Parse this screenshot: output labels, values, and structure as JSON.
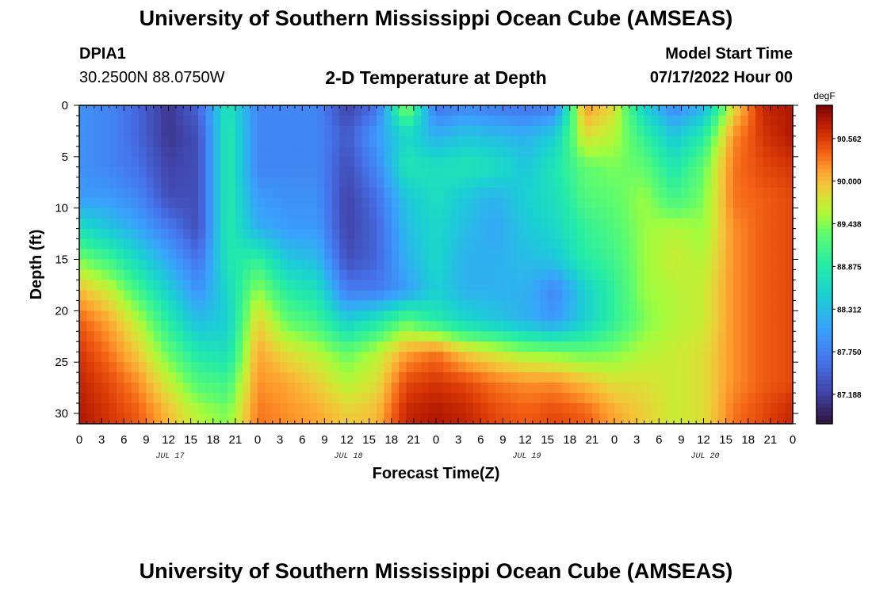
{
  "title": "University of Southern Mississippi Ocean Cube (AMSEAS)",
  "footer_title": "University of Southern Mississippi Ocean Cube (AMSEAS)",
  "station": {
    "id": "DPIA1",
    "coords": "30.2500N  88.0750W"
  },
  "plot_title": "2-D Temperature at Depth",
  "model_start": {
    "label": "Model Start Time",
    "value": "07/17/2022 Hour 00"
  },
  "colors": {
    "low": "#30123b",
    "mid": "#1ae4b6",
    "high": "#7a0403"
  },
  "chart_data": {
    "type": "heatmap",
    "title": "2-D Temperature at Depth",
    "xlabel": "Forecast Time(Z)",
    "ylabel": "Depth (ft)",
    "x_tick_labels": [
      "0",
      "3",
      "6",
      "9",
      "12",
      "15",
      "18",
      "21",
      "0",
      "3",
      "6",
      "9",
      "12",
      "15",
      "18",
      "21",
      "0",
      "3",
      "6",
      "9",
      "12",
      "15",
      "18",
      "21",
      "0",
      "3",
      "6",
      "9",
      "12",
      "15",
      "18",
      "21",
      "0"
    ],
    "date_labels": [
      "JUL 17",
      "JUL 18",
      "JUL 19",
      "JUL 20"
    ],
    "date_label_hours": [
      12,
      36,
      60,
      84
    ],
    "x_range_hours": [
      0,
      96
    ],
    "y_tick_labels": [
      "0",
      "5",
      "10",
      "15",
      "20",
      "25",
      "30"
    ],
    "ylim": [
      0,
      31
    ],
    "y_inverted": true,
    "colorbar": {
      "unit": "degF",
      "ticks": [
        "90.562",
        "90.000",
        "89.438",
        "88.875",
        "88.312",
        "87.750",
        "87.188"
      ],
      "range": [
        86.8,
        91.0
      ],
      "colormap": "turbo"
    },
    "sample_hours": [
      0,
      4,
      8,
      12,
      16,
      20,
      24,
      28,
      32,
      36,
      40,
      44,
      48,
      52,
      56,
      60,
      64,
      68,
      72,
      76,
      80,
      84,
      88,
      92,
      96
    ],
    "sample_depths": [
      0,
      3,
      6,
      9,
      12,
      15,
      18,
      21,
      24,
      27,
      30
    ],
    "values": [
      [
        87.9,
        87.8,
        87.5,
        87.1,
        87.5,
        88.8,
        87.8,
        87.8,
        87.8,
        87.2,
        87.6,
        89.6,
        87.6,
        87.8,
        87.7,
        87.6,
        87.7,
        90.2,
        89.8,
        88.5,
        87.8,
        88.2,
        89.8,
        90.7,
        90.8
      ],
      [
        87.9,
        87.8,
        87.5,
        87.1,
        87.3,
        88.9,
        87.8,
        87.8,
        87.8,
        87.4,
        88.0,
        88.6,
        88.2,
        88.4,
        88.3,
        88.2,
        88.5,
        89.8,
        89.6,
        89.0,
        88.4,
        88.9,
        90.2,
        90.6,
        90.8
      ],
      [
        87.9,
        87.8,
        87.6,
        87.2,
        87.3,
        88.9,
        87.8,
        87.8,
        87.8,
        87.3,
        87.8,
        88.8,
        88.7,
        88.8,
        88.7,
        88.4,
        88.8,
        89.3,
        89.4,
        89.3,
        88.8,
        89.3,
        90.3,
        90.5,
        90.6
      ],
      [
        88.0,
        88.0,
        87.8,
        87.3,
        87.3,
        88.9,
        88.0,
        87.9,
        87.9,
        87.2,
        87.6,
        88.4,
        88.7,
        88.4,
        88.2,
        88.5,
        88.7,
        89.2,
        89.3,
        89.5,
        89.1,
        89.4,
        90.3,
        90.4,
        90.5
      ],
      [
        88.7,
        88.4,
        88.1,
        87.7,
        87.3,
        88.9,
        88.2,
        88.0,
        88.0,
        87.2,
        87.5,
        88.3,
        88.6,
        88.3,
        88.1,
        88.4,
        88.6,
        89.0,
        89.2,
        89.5,
        89.6,
        89.5,
        90.2,
        90.4,
        90.5
      ],
      [
        89.4,
        89.1,
        88.6,
        88.1,
        87.6,
        88.8,
        89.0,
        88.4,
        88.3,
        87.3,
        87.5,
        88.2,
        88.6,
        88.2,
        88.2,
        88.3,
        88.4,
        88.9,
        89.1,
        89.5,
        89.7,
        89.6,
        90.2,
        90.4,
        90.5
      ],
      [
        90.0,
        89.7,
        89.1,
        88.5,
        87.9,
        88.6,
        89.5,
        88.9,
        88.7,
        87.7,
        87.7,
        88.0,
        88.5,
        88.2,
        88.2,
        88.2,
        87.8,
        88.5,
        89.0,
        89.5,
        89.6,
        89.7,
        90.2,
        90.4,
        90.5
      ],
      [
        90.4,
        90.1,
        89.6,
        88.9,
        88.3,
        88.5,
        89.9,
        89.3,
        89.1,
        88.5,
        88.8,
        89.3,
        88.9,
        88.6,
        88.4,
        88.2,
        88.0,
        88.5,
        89.0,
        89.4,
        89.6,
        89.7,
        90.2,
        90.4,
        90.5
      ],
      [
        90.6,
        90.3,
        89.9,
        89.3,
        88.8,
        88.7,
        90.1,
        89.8,
        89.6,
        89.3,
        89.6,
        90.1,
        90.3,
        89.9,
        89.7,
        89.5,
        89.4,
        89.3,
        89.4,
        89.6,
        89.7,
        89.8,
        90.2,
        90.4,
        90.5
      ],
      [
        90.7,
        90.5,
        90.2,
        89.7,
        89.2,
        89.1,
        90.2,
        90.1,
        89.9,
        89.6,
        89.8,
        90.5,
        90.6,
        90.5,
        90.3,
        90.2,
        90.2,
        90.0,
        89.8,
        89.8,
        89.7,
        89.8,
        90.2,
        90.4,
        90.5
      ],
      [
        90.8,
        90.6,
        90.4,
        90.0,
        89.6,
        89.4,
        90.3,
        90.2,
        90.1,
        89.9,
        90.0,
        90.7,
        90.8,
        90.7,
        90.5,
        90.4,
        90.5,
        90.4,
        90.1,
        89.9,
        89.7,
        89.8,
        90.3,
        90.5,
        90.7
      ]
    ]
  }
}
